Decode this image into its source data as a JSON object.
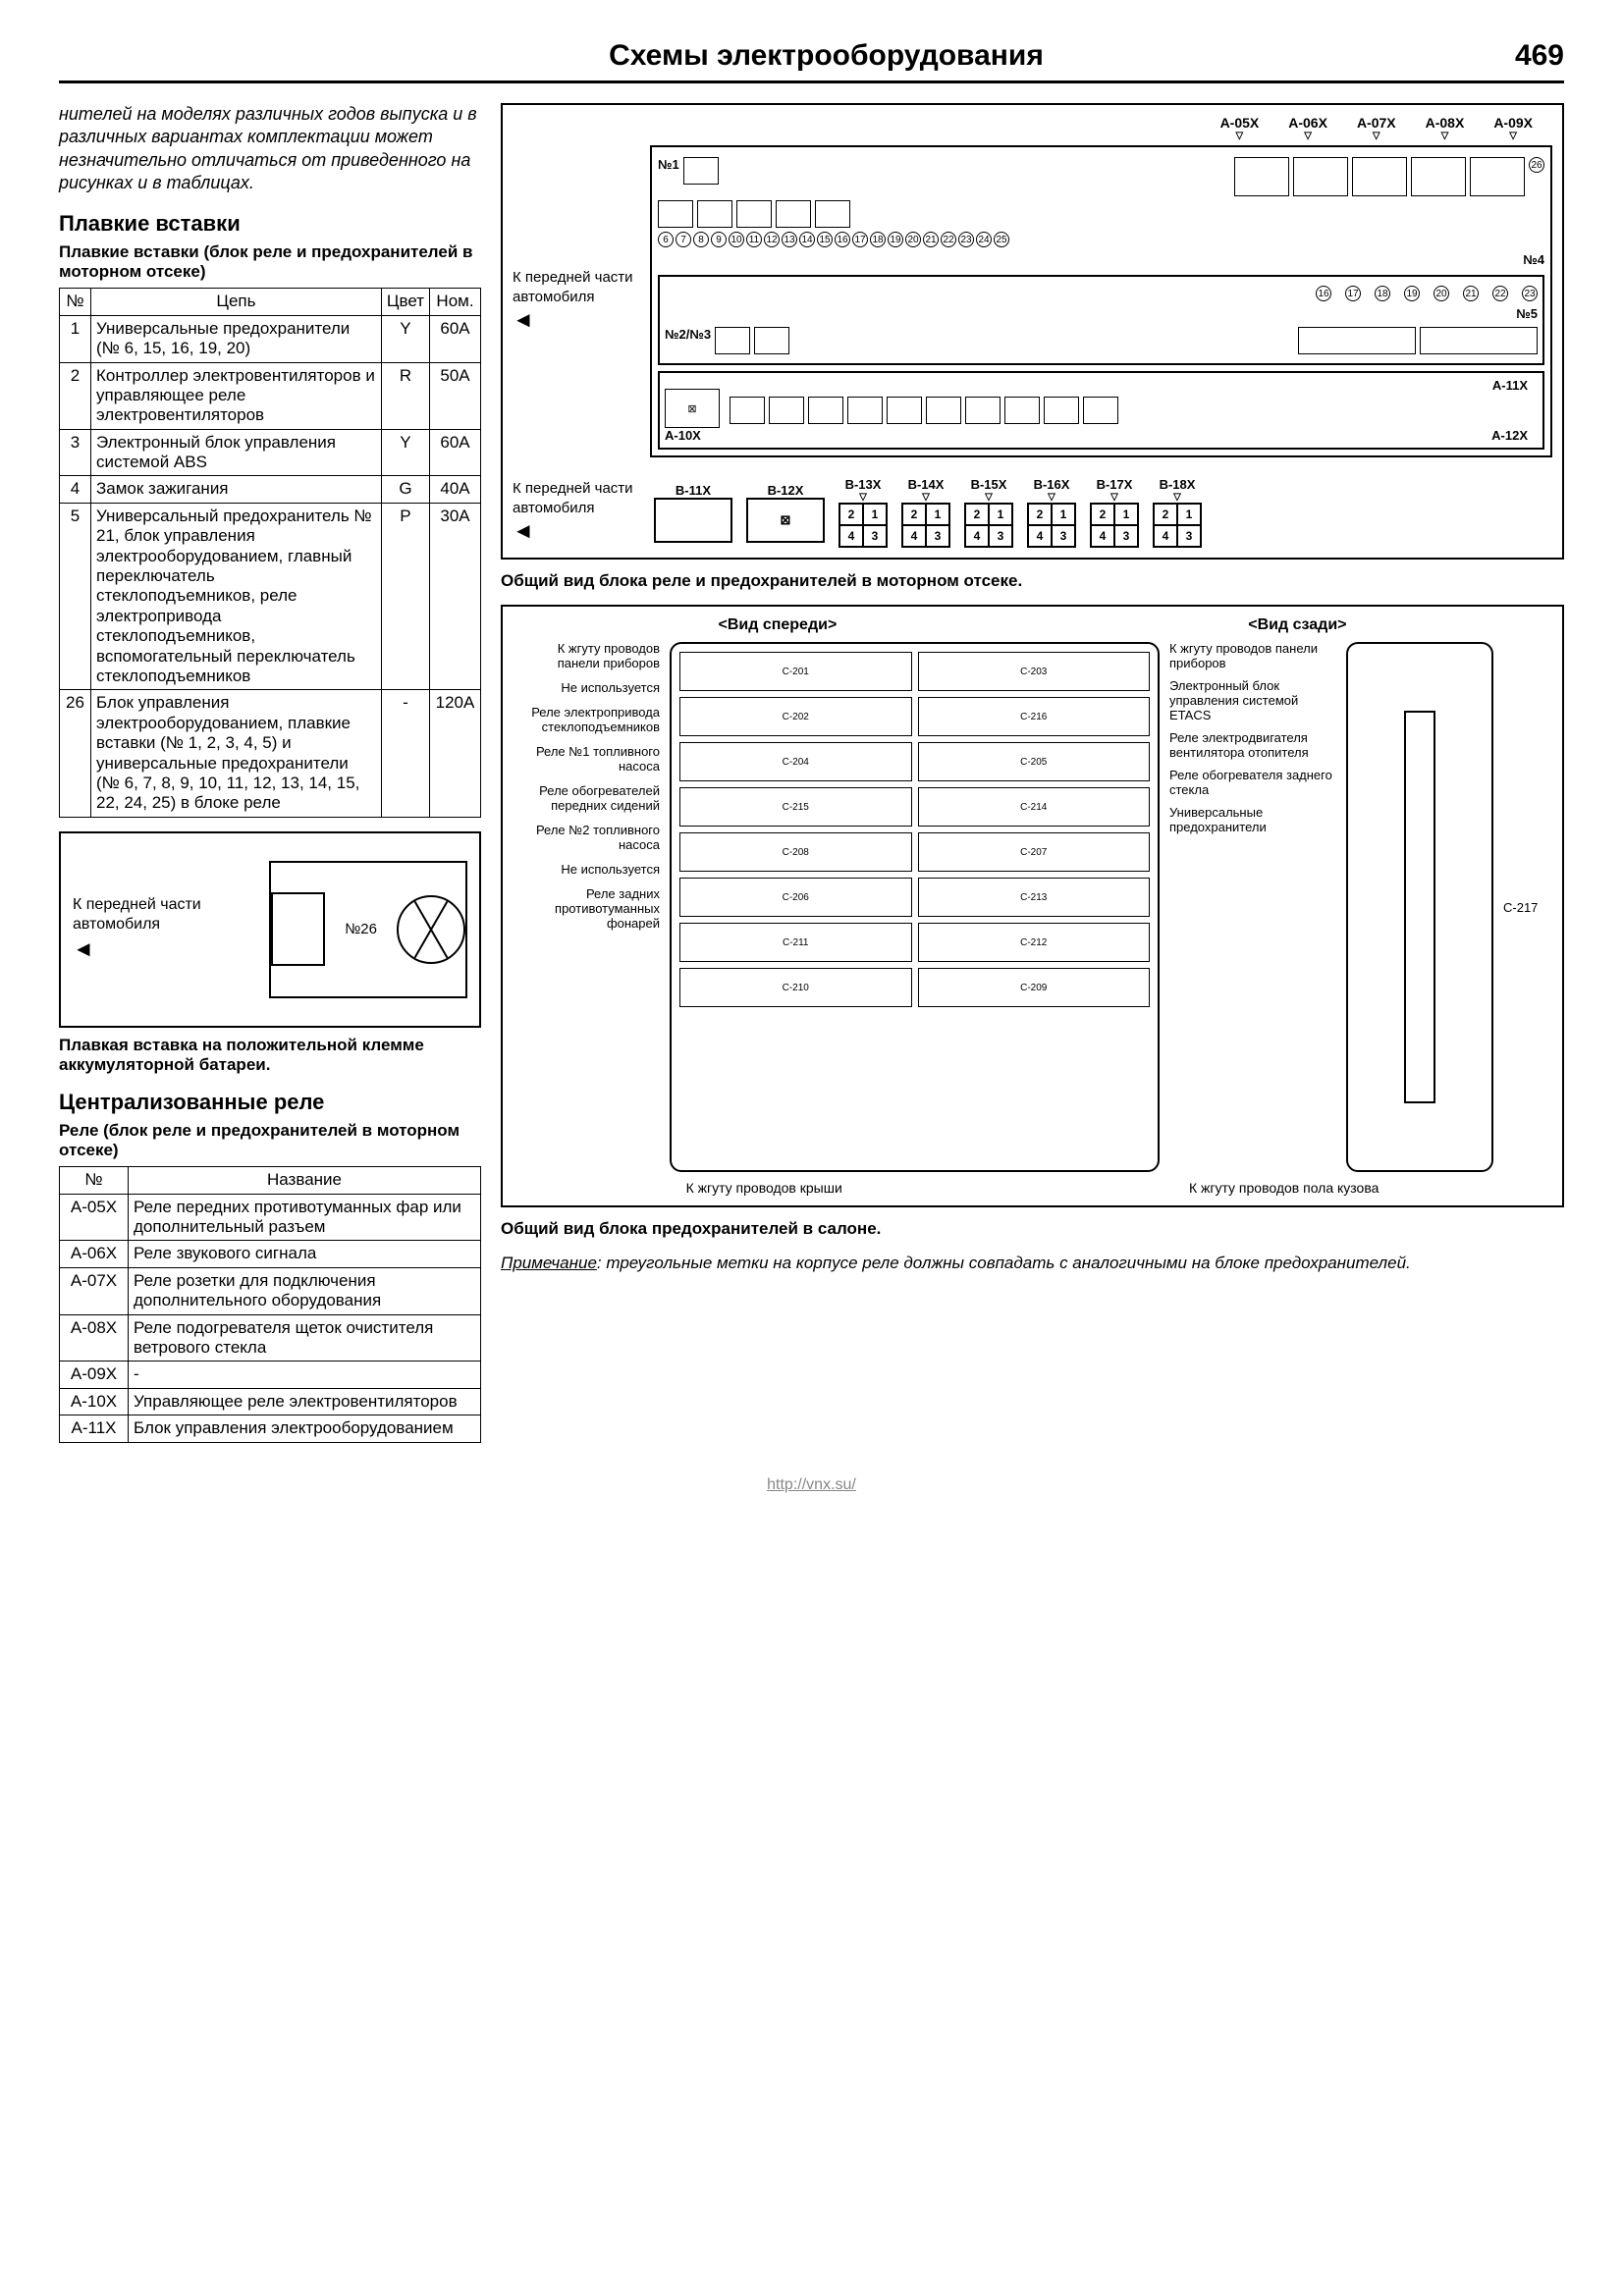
{
  "header": {
    "title": "Схемы электрооборудования",
    "page": "469"
  },
  "intro": "нителей на моделях различных годов выпуска и в различных вариантах комплектации может незначительно отличаться от приведенного на рисунках и в таблицах.",
  "sec1": {
    "h2": "Плавкие вставки",
    "sub": "Плавкие вставки (блок реле и предохранителей в моторном отсеке)",
    "cols": {
      "n": "№",
      "c": "Цепь",
      "col": "Цвет",
      "nom": "Ном."
    },
    "rows": [
      {
        "n": "1",
        "c": "Универсальные предохранители (№ 6, 15, 16, 19, 20)",
        "col": "Y",
        "nom": "60A"
      },
      {
        "n": "2",
        "c": "Контроллер электровентиляторов и управляющее реле электровентиляторов",
        "col": "R",
        "nom": "50A"
      },
      {
        "n": "3",
        "c": "Электронный блок управления системой ABS",
        "col": "Y",
        "nom": "60A"
      },
      {
        "n": "4",
        "c": "Замок зажигания",
        "col": "G",
        "nom": "40A"
      },
      {
        "n": "5",
        "c": "Универсальный предохранитель № 21, блок управления электрооборудованием, главный переключатель стеклоподъемников, реле электропривода стеклоподъемников, вспомогательный переключатель стеклоподъемников",
        "col": "P",
        "nom": "30A"
      },
      {
        "n": "26",
        "c": "Блок управления электрооборудованием, плавкие вставки (№ 1, 2, 3, 4, 5) и универсальные предохранители (№ 6, 7, 8, 9, 10, 11, 12, 13, 14, 15, 22, 24, 25) в блоке реле",
        "col": "-",
        "nom": "120A"
      }
    ]
  },
  "accum": {
    "label": "К передней части автомобиля",
    "tag": "№26",
    "caption": "Плавкая вставка на положительной клемме аккумуляторной батареи."
  },
  "sec2": {
    "h2": "Централизованные реле",
    "sub": "Реле (блок реле и предохранителей в моторном отсеке)",
    "cols": {
      "n": "№",
      "name": "Название"
    },
    "rows": [
      {
        "n": "A-05X",
        "name": "Реле передних противотуманных фар или дополнительный разъем"
      },
      {
        "n": "A-06X",
        "name": "Реле звукового сигнала"
      },
      {
        "n": "A-07X",
        "name": "Реле розетки для подключения дополнительного оборудования"
      },
      {
        "n": "A-08X",
        "name": "Реле подогревателя щеток очистителя ветрового стекла"
      },
      {
        "n": "A-09X",
        "name": "-"
      },
      {
        "n": "A-10X",
        "name": "Управляющее реле электровентиляторов"
      },
      {
        "n": "A-11X",
        "name": "Блок управления электрооборудованием"
      }
    ]
  },
  "engine": {
    "front_label": "К передней части автомобиля",
    "top_conns": [
      "A-05X",
      "A-06X",
      "A-07X",
      "A-08X",
      "A-09X"
    ],
    "n1": "№1",
    "n26": "26",
    "fuse_nums_row1": [
      "6",
      "7",
      "8",
      "9",
      "10",
      "11",
      "12",
      "13",
      "14",
      "15",
      "16",
      "17",
      "18",
      "19",
      "20",
      "21",
      "22",
      "23",
      "24",
      "25"
    ],
    "n4": "№4",
    "mid_nums": [
      "16",
      "17",
      "18",
      "19",
      "20",
      "21",
      "22",
      "23"
    ],
    "n5": "№5",
    "n2n3": "№2/№3",
    "a10x": "A-10X",
    "a11x": "A-11X",
    "a12x": "A-12X",
    "caption": "Общий вид блока реле и предохранителей в моторном отсеке."
  },
  "blockB": {
    "front_label": "К передней части автомобиля",
    "conns": [
      "B-13X",
      "B-14X",
      "B-15X",
      "B-16X",
      "B-17X",
      "B-18X"
    ],
    "b11x": "B-11X",
    "b12x": "B-12X",
    "cells": [
      "2",
      "1",
      "4",
      "3"
    ]
  },
  "cabin": {
    "view_front": "<Вид спереди>",
    "view_rear": "<Вид сзади>",
    "left_labels": [
      "К жгуту проводов панели приборов",
      "Не используется",
      "Реле электропривода стеклоподъемников",
      "Реле №1 топливного насоса",
      "Реле обогревателей передних сидений",
      "Реле №2 топливного насоса",
      "Не используется",
      "Реле задних противотуманных фонарей"
    ],
    "right_labels": [
      "К жгуту проводов панели приборов",
      "Электронный блок управления системой ETACS",
      "Реле электродвигателя вентилятора отопителя",
      "Реле обогревателя заднего стекла",
      "Универсальные предохранители"
    ],
    "conn_labels": [
      "C-201",
      "C-203",
      "C-202",
      "C-216",
      "C-204",
      "C-205",
      "C-215",
      "C-214",
      "C-208",
      "C-207",
      "C-206",
      "C-213",
      "C-211",
      "C-212",
      "C-210",
      "C-209"
    ],
    "c217": "C-217",
    "bottom_left": "К жгуту проводов крыши",
    "bottom_right": "К жгуту проводов пола кузова",
    "caption": "Общий вид блока предохранителей в салоне.",
    "note_label": "Примечание",
    "note": ": треугольные метки на корпусе реле должны совпадать с аналогичными на блоке предохранителей."
  },
  "footer": "http://vnx.su/"
}
